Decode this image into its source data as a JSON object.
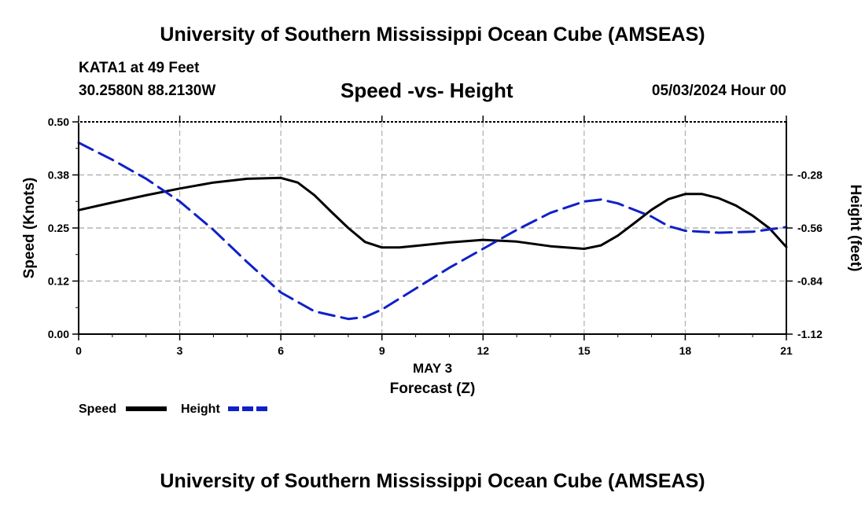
{
  "header": {
    "title": "University of Southern Mississippi Ocean Cube (AMSEAS)",
    "station": "KATA1 at 49 Feet",
    "coords": "30.2580N  88.2130W",
    "datetime": "05/03/2024 Hour 00"
  },
  "footer": {
    "title": "University of Southern Mississippi Ocean Cube (AMSEAS)"
  },
  "chart_data": {
    "type": "line",
    "title": "Speed -vs- Height",
    "xlabel": "Forecast (Z)",
    "xsublabel": "MAY 3",
    "ylabel": "Speed (Knots)",
    "y2label": "Height (feet)",
    "xlim": [
      0,
      21
    ],
    "ylim": [
      0,
      0.5
    ],
    "y2lim": [
      -1.12,
      -0.0
    ],
    "xticks": [
      "0",
      "3",
      "6",
      "9",
      "12",
      "15",
      "18",
      "21"
    ],
    "yticks": [
      "0.00",
      "0.12",
      "0.25",
      "0.38",
      "0.50"
    ],
    "yticks_values": [
      0,
      0.125,
      0.25,
      0.375,
      0.5
    ],
    "y2ticks": [
      "-0.28",
      "-0.56",
      "-0.84",
      "-1.12"
    ],
    "y2ticks_values": [
      -0.28,
      -0.56,
      -0.84,
      -1.12
    ],
    "grid": true,
    "series": [
      {
        "name": "Speed",
        "color": "#000000",
        "style": "solid",
        "axis": "left",
        "x": [
          0,
          1,
          2,
          3,
          4,
          5,
          6,
          6.5,
          7,
          7.5,
          8,
          8.5,
          9,
          9.5,
          10,
          11,
          12,
          13,
          14,
          15,
          15.5,
          16,
          16.5,
          17,
          17.5,
          18,
          18.5,
          19,
          19.5,
          20,
          20.5,
          21
        ],
        "values": [
          0.292,
          0.31,
          0.327,
          0.343,
          0.357,
          0.366,
          0.368,
          0.357,
          0.327,
          0.288,
          0.25,
          0.217,
          0.204,
          0.204,
          0.208,
          0.216,
          0.222,
          0.218,
          0.207,
          0.201,
          0.209,
          0.232,
          0.262,
          0.293,
          0.318,
          0.33,
          0.33,
          0.32,
          0.303,
          0.279,
          0.249,
          0.205
        ]
      },
      {
        "name": "Height",
        "color": "#1020c8",
        "style": "dashed",
        "axis": "right",
        "x": [
          0,
          1,
          2,
          3,
          4,
          5,
          6,
          7,
          8,
          8.5,
          9,
          10,
          11,
          12,
          13,
          14,
          15,
          15.5,
          16,
          17,
          17.5,
          18,
          19,
          20,
          21
        ],
        "values": [
          -0.11,
          -0.2,
          -0.3,
          -0.42,
          -0.57,
          -0.74,
          -0.9,
          -1.0,
          -1.04,
          -1.03,
          -0.99,
          -0.88,
          -0.77,
          -0.67,
          -0.57,
          -0.48,
          -0.42,
          -0.41,
          -0.43,
          -0.5,
          -0.55,
          -0.575,
          -0.585,
          -0.58,
          -0.555
        ]
      }
    ],
    "legend": {
      "position": "bottom-left",
      "speed_label": "Speed",
      "height_label": "Height"
    }
  }
}
